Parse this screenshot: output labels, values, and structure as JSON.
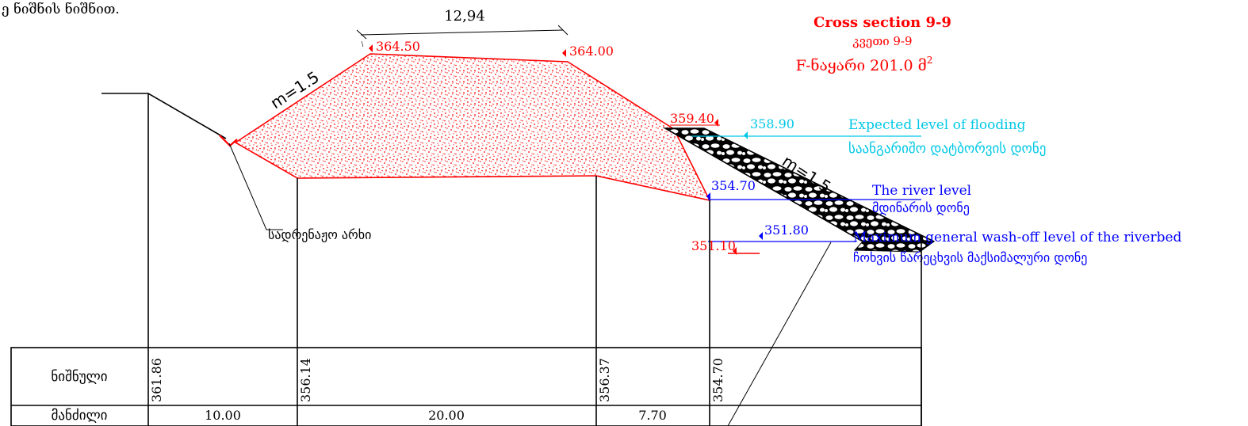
{
  "header_fragment": "ე ნიშნის ნიშნით.",
  "title": {
    "en": "Cross section 9-9",
    "ka": "კვეთი 9-9",
    "area_prefix": "F-ნაყარი 201.0  მ",
    "area_sup": "2"
  },
  "dimension_top": "12,94",
  "slope_labels": [
    "m=1.5",
    "m=1.5"
  ],
  "elevations": {
    "crest_left": "364.50",
    "crest_right": "364.00",
    "toe_top": "359.40",
    "flood": "358.90",
    "river": "354.70",
    "washoff": "351.80",
    "riverbed": "351.10"
  },
  "annotations": {
    "flood_en": "Expected level of flooding",
    "flood_ka": "საანგარიშო დატბორვის დონე",
    "river_en": "The river level",
    "river_ka": "მდინარის დონე",
    "washoff_en": "Maximum general wash-off level of the riverbed",
    "washoff_ka": "ჩოხვის წარეცხვის მაქსიმალური დონე",
    "drain": "სადრენაჟო არხი"
  },
  "table": {
    "row1_label": "ნიშნული",
    "row2_label": "მანძილი",
    "marks": [
      "361.86",
      "356.14",
      "356.37",
      "354.70"
    ],
    "distances": [
      "10.00",
      "20.00",
      "7.70"
    ]
  },
  "colors": {
    "fill_red": "#ff0000",
    "flood_cyan": "#00c8e6",
    "river_blue": "#0000ff",
    "line": "#000000"
  }
}
